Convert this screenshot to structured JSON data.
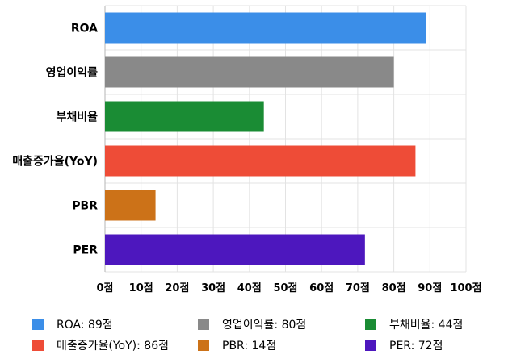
{
  "chart_data": {
    "type": "bar",
    "orientation": "horizontal",
    "categories": [
      "ROA",
      "영업이익률",
      "부채비율",
      "매출증가율(YoY)",
      "PBR",
      "PER"
    ],
    "values": [
      89,
      80,
      44,
      86,
      14,
      72
    ],
    "colors": [
      "#3b8ee8",
      "#898989",
      "#1a8c34",
      "#ee4c37",
      "#cc7218",
      "#4d17be"
    ],
    "xlim": [
      0,
      100
    ],
    "x_ticks": [
      0,
      10,
      20,
      30,
      40,
      50,
      60,
      70,
      80,
      90,
      100
    ],
    "tick_labels": [
      "0점",
      "10점",
      "20점",
      "30점",
      "40점",
      "50점",
      "60점",
      "70점",
      "80점",
      "90점",
      "100점"
    ],
    "grid": true,
    "legend_position": "bottom",
    "legend": [
      "ROA: 89점",
      "영업이익률: 80점",
      "부채비율: 44점",
      "매출증가율(YoY): 86점",
      "PBR: 14점",
      "PER: 72점"
    ]
  }
}
